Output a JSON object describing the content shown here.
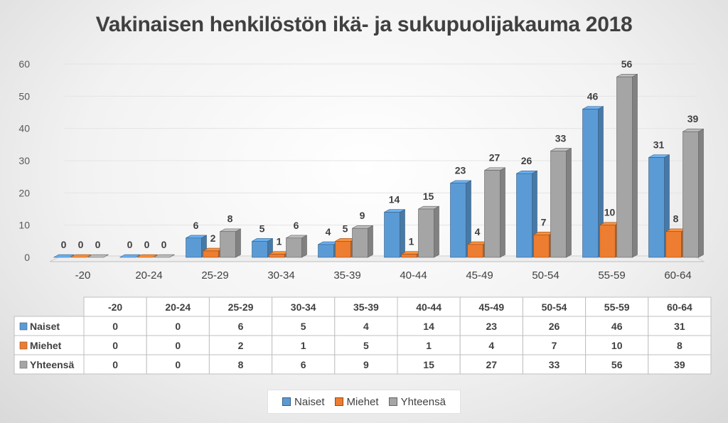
{
  "chart_data": {
    "type": "bar",
    "title": "Vakinaisen henkilöstön ikä- ja sukupuolijakauma 2018",
    "categories": [
      "-20",
      "20-24",
      "25-29",
      "30-34",
      "35-39",
      "40-44",
      "45-49",
      "50-54",
      "55-59",
      "60-64"
    ],
    "series": [
      {
        "name": "Naiset",
        "color": "#5b9bd5",
        "values": [
          0,
          0,
          6,
          5,
          4,
          14,
          23,
          26,
          46,
          31
        ]
      },
      {
        "name": "Miehet",
        "color": "#ed7d31",
        "values": [
          0,
          0,
          2,
          1,
          5,
          1,
          4,
          7,
          10,
          8
        ]
      },
      {
        "name": "Yhteensä",
        "color": "#a5a5a5",
        "values": [
          0,
          0,
          8,
          6,
          9,
          15,
          27,
          33,
          56,
          39
        ]
      }
    ],
    "ylim": [
      0,
      60
    ],
    "yticks": [
      0,
      10,
      20,
      30,
      40,
      50,
      60
    ],
    "grid": true,
    "legend_position": "bottom",
    "data_table": true
  }
}
